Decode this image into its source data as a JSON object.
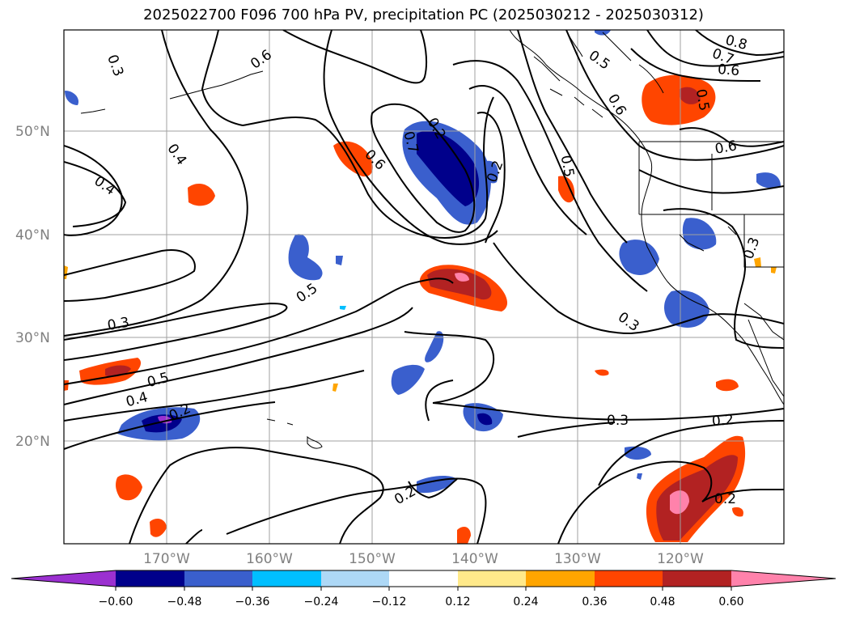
{
  "title": "2025022700 F096 700 hPa PV, precipitation PC (2025030212 - 2025030312)",
  "map": {
    "lat_labels": [
      "50°N",
      "40°N",
      "30°N",
      "20°N"
    ],
    "lon_labels": [
      "170°W",
      "160°W",
      "150°W",
      "140°W",
      "130°W",
      "120°W"
    ],
    "contour_labels": [
      "0.3",
      "0.6",
      "0.4",
      "0.4",
      "0.5",
      "0.3",
      "0.5",
      "0.4",
      "0.2",
      "0.7",
      "0.2",
      "0.6",
      "0.2",
      "0.5",
      "0.6",
      "0.5",
      "0.7",
      "0.8",
      "0.6",
      "0.5",
      "0.6",
      "0.3",
      "0.3",
      "0.3",
      "0.2",
      "0.2",
      "0.2"
    ]
  },
  "colorbar": {
    "ticks": [
      "−0.60",
      "−0.48",
      "−0.36",
      "−0.24",
      "−0.12",
      "0.12",
      "0.24",
      "0.36",
      "0.48",
      "0.60"
    ],
    "colors": [
      "#9b30d0",
      "#00008b",
      "#3a5fcd",
      "#00bfff",
      "#add8f6",
      "#ffffff",
      "#ffe98a",
      "#ffa500",
      "#ff4500",
      "#b22222",
      "#ff82ab"
    ]
  }
}
